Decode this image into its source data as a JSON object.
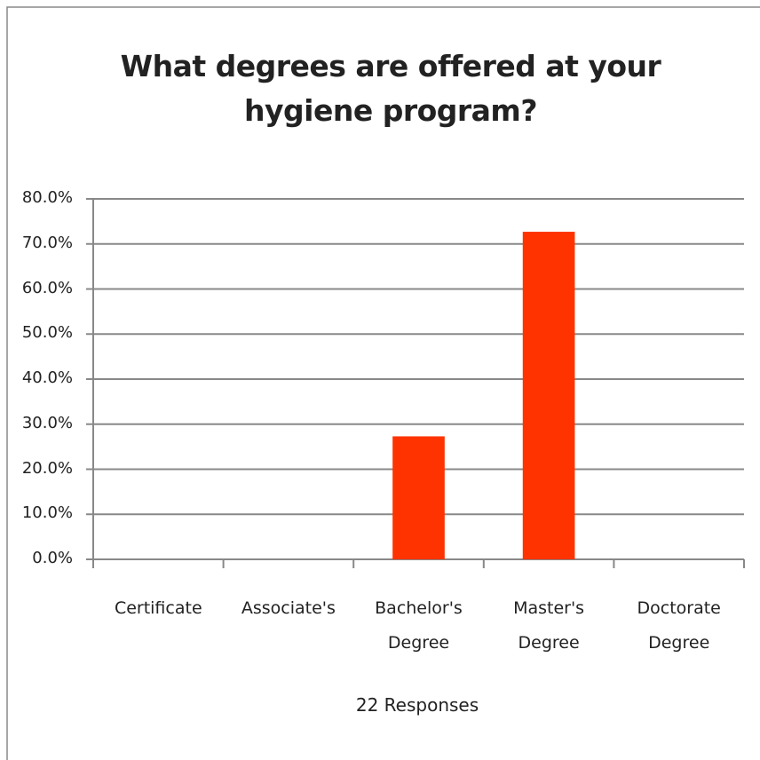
{
  "chart_data": {
    "type": "bar",
    "title": "What degrees are offered at your hygiene program?",
    "x_label": "22 Responses",
    "categories": [
      "Certificate",
      "Associate's",
      "Bachelor's Degree",
      "Master's Degree",
      "Doctorate Degree"
    ],
    "values": [
      0,
      0,
      27.3,
      72.7,
      0
    ],
    "color": "#ff3300",
    "ylim": [
      0,
      80
    ],
    "yticks": [
      {
        "value": 0,
        "label": "0.0%"
      },
      {
        "value": 10,
        "label": "10.0%"
      },
      {
        "value": 20,
        "label": "20.0%"
      },
      {
        "value": 30,
        "label": "30.0%"
      },
      {
        "value": 40,
        "label": "40.0%"
      },
      {
        "value": 50,
        "label": "50.0%"
      },
      {
        "value": 60,
        "label": "60.0%"
      },
      {
        "value": 70,
        "label": "70.0%"
      },
      {
        "value": 80,
        "label": "80.0%"
      }
    ],
    "grid": true
  }
}
